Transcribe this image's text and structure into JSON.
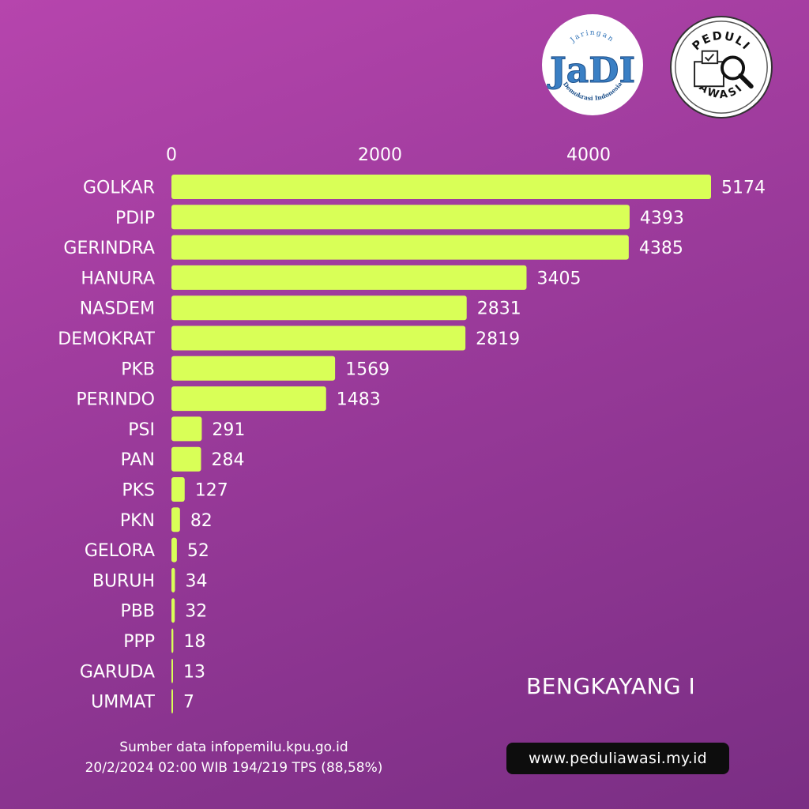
{
  "chart_data": {
    "type": "bar",
    "orientation": "horizontal",
    "title": "",
    "xlabel": "",
    "ylabel": "",
    "xlim": [
      0,
      5174
    ],
    "xticks": [
      0,
      2000,
      4000
    ],
    "tick_labels": [
      "0",
      "2000",
      "4000"
    ],
    "axis_position": "top",
    "grid": false,
    "bar_color": "#d9ff57",
    "categories": [
      "GOLKAR",
      "PDIP",
      "GERINDRA",
      "HANURA",
      "NASDEM",
      "DEMOKRAT",
      "PKB",
      "PERINDO",
      "PSI",
      "PAN",
      "PKS",
      "PKN",
      "GELORA",
      "BURUH",
      "PBB",
      "PPP",
      "GARUDA",
      "UMMAT"
    ],
    "values": [
      5174,
      4393,
      4385,
      3405,
      2831,
      2819,
      1569,
      1483,
      291,
      284,
      127,
      82,
      52,
      34,
      32,
      18,
      13,
      7
    ],
    "value_labels": [
      "5174",
      "4393",
      "4385",
      "3405",
      "2831",
      "2819",
      "1569",
      "1483",
      "291",
      "284",
      "127",
      "82",
      "52",
      "34",
      "32",
      "18",
      "13",
      "7"
    ]
  },
  "region": "BENGKAYANG I",
  "source": {
    "line1": "Sumber data infopemilu.kpu.go.id",
    "line2": "20/2/2024 02:00 WIB 194/219 TPS  (88,58%)"
  },
  "website": "www.peduliawasi.my.id",
  "logos": {
    "jadi": {
      "icon": "jadi-logo",
      "text": "JaDI",
      "top_arc": "Jaringan",
      "bottom_arc": "Demokrasi Indonesia"
    },
    "peduli": {
      "icon": "peduli-awasi-logo",
      "top_text": "PEDULI",
      "bottom_text": "AWASI"
    }
  },
  "colors": {
    "background_start": "#b645ad",
    "background_end": "#7a2e84",
    "bar": "#d9ff57",
    "text": "#ffffff",
    "badge": "#0d0d0d"
  }
}
